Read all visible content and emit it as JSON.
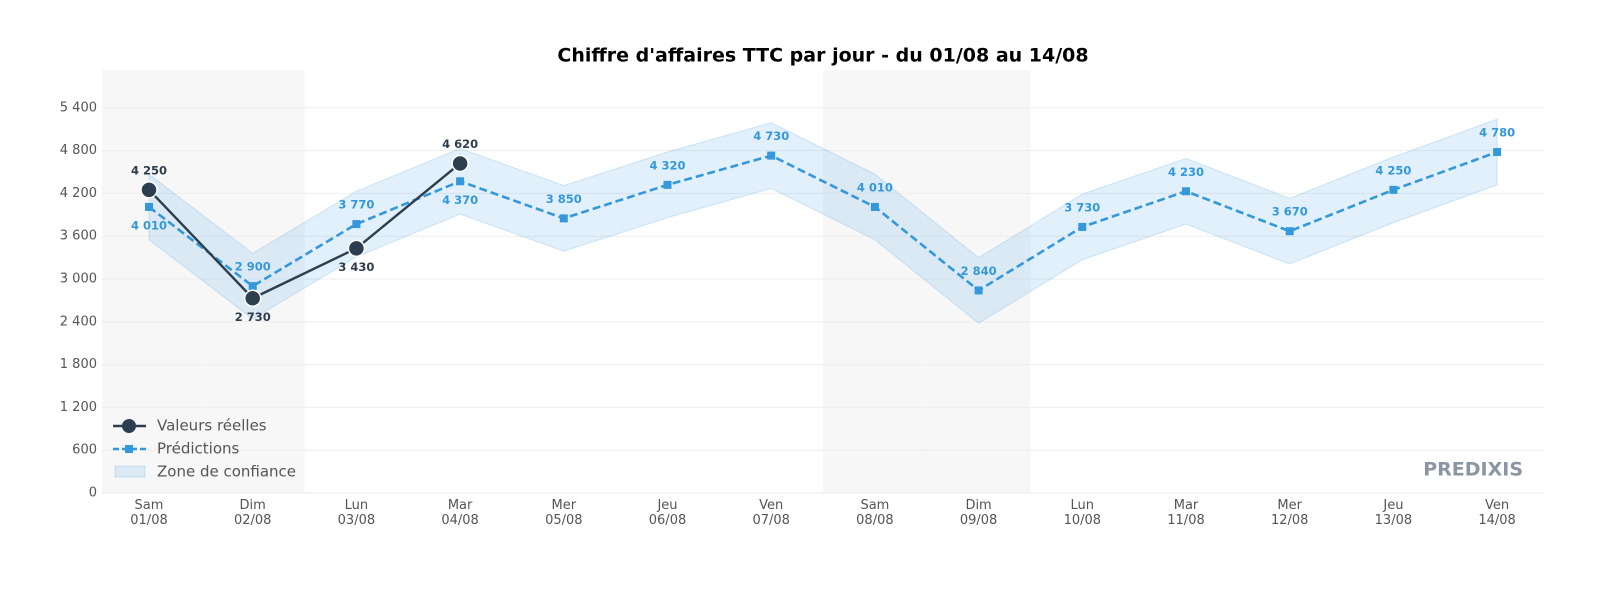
{
  "chart_data": {
    "type": "line",
    "title": "Chiffre d'affaires TTC par jour - du 01/08 au 14/08",
    "categories": [
      "Sam\n01/08",
      "Dim\n02/08",
      "Lun\n03/08",
      "Mar\n04/08",
      "Mer\n05/08",
      "Jeu\n06/08",
      "Ven\n07/08",
      "Sam\n08/08",
      "Dim\n09/08",
      "Lun\n10/08",
      "Mar\n11/08",
      "Mer\n12/08",
      "Jeu\n13/08",
      "Ven\n14/08"
    ],
    "series": [
      {
        "name": "Valeurs réelles",
        "color": "#2c3e50",
        "values": [
          4250,
          2730,
          3430,
          4620,
          null,
          null,
          null,
          null,
          null,
          null,
          null,
          null,
          null,
          null
        ],
        "value_labels": [
          "4 250",
          "2 730",
          "3 430",
          "4 620",
          null,
          null,
          null,
          null,
          null,
          null,
          null,
          null,
          null,
          null
        ]
      },
      {
        "name": "Prédictions",
        "color": "#3498db",
        "values": [
          4010,
          2900,
          3770,
          4370,
          3850,
          4320,
          4730,
          4010,
          2840,
          3730,
          4230,
          3670,
          4250,
          4780
        ],
        "value_labels": [
          "4 010",
          "2 900",
          "3 770",
          "4 370",
          "3 850",
          "4 320",
          "4 730",
          "4 010",
          "2 840",
          "3 730",
          "4 230",
          "3 670",
          "4 250",
          "4 780"
        ]
      },
      {
        "name": "Zone de confiance",
        "color": "#3498db",
        "lower": [
          3550,
          2440,
          3310,
          3910,
          3390,
          3860,
          4270,
          3550,
          2380,
          3270,
          3770,
          3210,
          3790,
          4320
        ],
        "upper": [
          4470,
          3360,
          4230,
          4830,
          4310,
          4780,
          5190,
          4470,
          3300,
          4190,
          4690,
          4130,
          4710,
          5240
        ]
      }
    ],
    "ylim": [
      0,
      5930
    ],
    "yticks": [
      0,
      600,
      {
        "value": 1200,
        "label": "1 200"
      },
      {
        "value": 1800,
        "label": "1 800"
      },
      {
        "value": 2400,
        "label": "2 400"
      },
      {
        "value": 3000,
        "label": "3 000"
      },
      {
        "value": 3600,
        "label": "3 600"
      },
      {
        "value": 4200,
        "label": "4 200"
      },
      {
        "value": 4800,
        "label": "4 800"
      },
      {
        "value": 5400,
        "label": "5 400"
      }
    ],
    "grid": true,
    "legend": "lower left",
    "watermark": "PREDIXIS"
  }
}
